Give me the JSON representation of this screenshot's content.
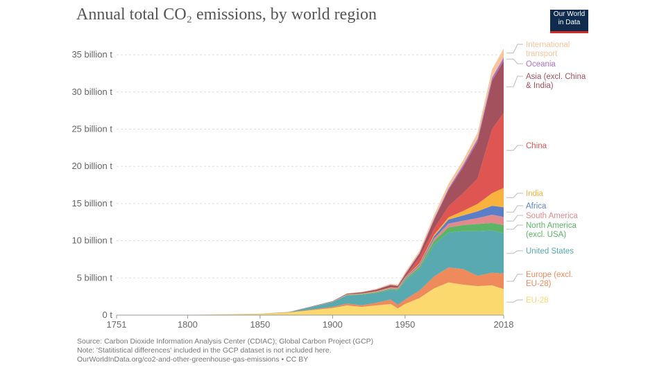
{
  "header": {
    "title": "Annual total CO₂ emissions, by world region",
    "logo_line1": "Our World",
    "logo_line2": "in Data"
  },
  "chart_data": {
    "type": "area",
    "stacked": true,
    "title": "Annual total CO₂ emissions, by world region",
    "ylabel": "",
    "xlabel": "",
    "ylim": [
      0,
      36.5
    ],
    "xlim": [
      1751,
      2018
    ],
    "x_ticks": [
      "1751",
      "1800",
      "1850",
      "1900",
      "1950",
      "2018"
    ],
    "y_ticks": [
      "0 t",
      "5 billion t",
      "10 billion t",
      "15 billion t",
      "20 billion t",
      "25 billion t",
      "30 billion t",
      "35 billion t"
    ],
    "x": [
      1751,
      1800,
      1850,
      1870,
      1900,
      1910,
      1920,
      1930,
      1940,
      1945,
      1950,
      1960,
      1970,
      1980,
      1990,
      2000,
      2010,
      2018
    ],
    "series": [
      {
        "name": "EU-28",
        "color": "#fcd96e",
        "values": [
          0.009,
          0.03,
          0.17,
          0.35,
          0.95,
          1.3,
          1.1,
          1.3,
          1.5,
          0.9,
          1.5,
          2.3,
          3.6,
          4.4,
          4.1,
          3.9,
          4.0,
          3.5
        ]
      },
      {
        "name": "Europe (excl. EU-28)",
        "color": "#ef8a5c",
        "values": [
          0,
          0.003,
          0.02,
          0.03,
          0.15,
          0.25,
          0.22,
          0.35,
          0.6,
          0.5,
          0.6,
          1.0,
          1.6,
          2.0,
          2.1,
          1.4,
          1.7,
          2.1
        ]
      },
      {
        "name": "United States",
        "color": "#58a9b0",
        "values": [
          0,
          0.001,
          0.005,
          0.03,
          0.65,
          1.1,
          1.4,
          1.3,
          1.3,
          1.9,
          2.5,
          2.9,
          4.3,
          4.7,
          5.1,
          6.0,
          5.7,
          5.4
        ]
      },
      {
        "name": "North America (excl. USA)",
        "color": "#5cb466",
        "values": [
          0,
          0,
          0,
          0.005,
          0.03,
          0.06,
          0.08,
          0.1,
          0.12,
          0.15,
          0.2,
          0.3,
          0.5,
          0.7,
          0.8,
          0.95,
          1.0,
          1.1
        ]
      },
      {
        "name": "South America",
        "color": "#e28a8b",
        "values": [
          0,
          0,
          0,
          0,
          0.01,
          0.02,
          0.03,
          0.04,
          0.06,
          0.07,
          0.1,
          0.2,
          0.3,
          0.5,
          0.6,
          0.8,
          1.1,
          1.1
        ]
      },
      {
        "name": "Africa",
        "color": "#5b7fc6",
        "values": [
          0,
          0,
          0,
          0,
          0.01,
          0.02,
          0.02,
          0.03,
          0.05,
          0.07,
          0.1,
          0.15,
          0.3,
          0.55,
          0.7,
          0.9,
          1.2,
          1.3
        ]
      },
      {
        "name": "India",
        "color": "#f8b23d",
        "values": [
          0,
          0,
          0,
          0.005,
          0.02,
          0.03,
          0.04,
          0.06,
          0.07,
          0.07,
          0.07,
          0.12,
          0.2,
          0.3,
          0.6,
          1.0,
          1.7,
          2.6
        ]
      },
      {
        "name": "China",
        "color": "#de5552",
        "values": [
          0,
          0,
          0,
          0,
          0,
          0.01,
          0.02,
          0.03,
          0.05,
          0.05,
          0.08,
          0.8,
          0.8,
          1.5,
          2.4,
          3.4,
          8.6,
          10.1
        ]
      },
      {
        "name": "Asia (excl. China & India)",
        "color": "#a3515c",
        "values": [
          0,
          0,
          0,
          0.005,
          0.05,
          0.1,
          0.15,
          0.2,
          0.3,
          0.2,
          0.3,
          0.5,
          1.2,
          2.2,
          3.5,
          5.0,
          6.5,
          7.0
        ]
      },
      {
        "name": "Oceania",
        "color": "#a774c6",
        "values": [
          0,
          0,
          0,
          0.002,
          0.01,
          0.02,
          0.02,
          0.03,
          0.04,
          0.05,
          0.07,
          0.1,
          0.15,
          0.22,
          0.3,
          0.37,
          0.43,
          0.45
        ]
      },
      {
        "name": "International transport",
        "color": "#f6c59b",
        "values": [
          0,
          0,
          0,
          0,
          0,
          0.03,
          0.05,
          0.1,
          0.12,
          0.15,
          0.2,
          0.3,
          0.5,
          0.6,
          0.6,
          0.8,
          1.1,
          1.2
        ]
      }
    ],
    "legend": [
      "International transport",
      "Oceania",
      "Asia (excl. China & India)",
      "China",
      "India",
      "Africa",
      "South America",
      "North America (excl. USA)",
      "United States",
      "Europe (excl. EU-28)",
      "EU-28"
    ],
    "legend_placement": "right"
  },
  "footer": {
    "source": "Source: Carbon Dioxide Information Analysis Center (CDIAC); Global Carbon Project (GCP)",
    "note": "Note: 'Statitistical differences' included in the GCP dataset is not included here.",
    "url": "OurWorldInData.org/co2-and-other-greenhouse-gas-emissions • CC BY"
  }
}
